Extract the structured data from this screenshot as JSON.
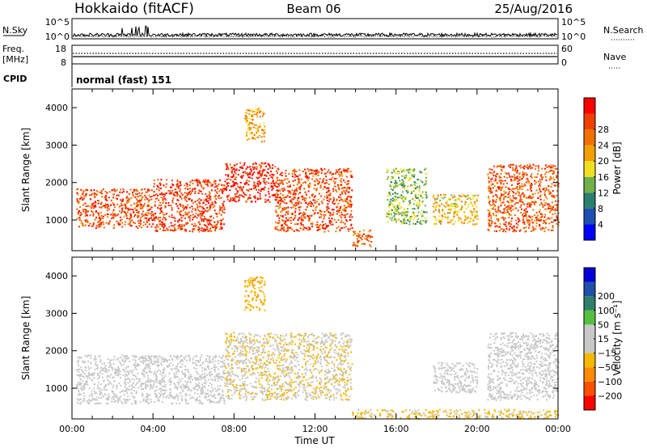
{
  "header": {
    "title_left": "Hokkaido (fitACF)",
    "title_center": "Beam 06",
    "title_right": "25/Aug/2016"
  },
  "panels": {
    "nsky": {
      "label": "N.Sky",
      "tick_top": "10^5",
      "tick_bottom": "10^0",
      "right_label": "N.Search",
      "right_tick_top": "10^5",
      "right_tick_bottom": "10^0"
    },
    "freq": {
      "label_line1": "Freq.",
      "label_line2": "[MHz]",
      "tick_top": "18",
      "tick_bottom": "8",
      "right_label": "Nave",
      "right_tick_top": "60",
      "right_tick_bottom": "0"
    },
    "cpid": {
      "label": "CPID",
      "mode_text": "normal (fast) 151"
    }
  },
  "colors": {
    "power": [
      "#0000ff",
      "#1d4fb3",
      "#2a7f6e",
      "#6fb04a",
      "#f0e020",
      "#f0a000",
      "#f07000",
      "#f04000",
      "#ff0000"
    ],
    "velocity": [
      "#ff0000",
      "#ff5000",
      "#ff8a00",
      "#f5b800",
      "#c8c8c8",
      "#c8c8c8",
      "#55c040",
      "#2f7f6a",
      "#1f4fa8",
      "#0000d8"
    ]
  },
  "chart_data": [
    {
      "type": "heatmap",
      "title": "",
      "xlabel": "",
      "ylabel": "Slant Range [km]",
      "xlim": [
        0,
        24
      ],
      "ylim": [
        180,
        4500
      ],
      "yticks": [
        "1000",
        "2000",
        "3000",
        "4000"
      ],
      "colorbar": {
        "label": "Power [dB]",
        "ticks": [
          "4",
          "8",
          "12",
          "16",
          "20",
          "24",
          "28"
        ],
        "range": [
          0,
          32
        ]
      },
      "regions": [
        {
          "t0": 0.2,
          "t1": 4.0,
          "r0": 800,
          "r1": 1850,
          "value": 26
        },
        {
          "t0": 4.0,
          "t1": 7.5,
          "r0": 700,
          "r1": 2100,
          "value": 27
        },
        {
          "t0": 7.5,
          "t1": 10.0,
          "r0": 1500,
          "r1": 2550,
          "value": 29
        },
        {
          "t0": 10.0,
          "t1": 13.8,
          "r0": 700,
          "r1": 2400,
          "value": 26
        },
        {
          "t0": 13.8,
          "t1": 14.8,
          "r0": 300,
          "r1": 750,
          "value": 24
        },
        {
          "t0": 8.5,
          "t1": 9.5,
          "r0": 3100,
          "r1": 4000,
          "value": 20
        },
        {
          "t0": 15.5,
          "t1": 17.5,
          "r0": 900,
          "r1": 2400,
          "value": 13
        },
        {
          "t0": 17.8,
          "t1": 20.0,
          "r0": 900,
          "r1": 1700,
          "value": 18
        },
        {
          "t0": 20.5,
          "t1": 24.0,
          "r0": 700,
          "r1": 2500,
          "value": 25
        }
      ]
    },
    {
      "type": "heatmap",
      "title": "",
      "xlabel": "Time UT",
      "ylabel": "Slant Range [km]",
      "xlim": [
        0,
        24
      ],
      "ylim": [
        180,
        4500
      ],
      "xticks": [
        "00:00",
        "04:00",
        "08:00",
        "12:00",
        "16:00",
        "20:00",
        "00:00"
      ],
      "yticks": [
        "1000",
        "2000",
        "3000",
        "4000"
      ],
      "colorbar": {
        "label": "Velocity [m s⁻¹]",
        "ticks": [
          "200",
          "100",
          "50",
          "15",
          "−15",
          "−50",
          "−100",
          "−200"
        ],
        "range": [
          -250,
          250
        ]
      },
      "regions": [
        {
          "t0": 0.2,
          "t1": 7.5,
          "r0": 600,
          "r1": 1900,
          "value": 0
        },
        {
          "t0": 7.5,
          "t1": 13.8,
          "r0": 700,
          "r1": 2500,
          "value": -40
        },
        {
          "t0": 13.8,
          "t1": 24.0,
          "r0": 200,
          "r1": 450,
          "value": -60
        },
        {
          "t0": 8.5,
          "t1": 9.5,
          "r0": 3100,
          "r1": 4000,
          "value": -80
        },
        {
          "t0": 17.8,
          "t1": 20.0,
          "r0": 900,
          "r1": 1700,
          "value": 0
        },
        {
          "t0": 20.5,
          "t1": 24.0,
          "r0": 700,
          "r1": 2500,
          "value": 0
        }
      ]
    }
  ]
}
